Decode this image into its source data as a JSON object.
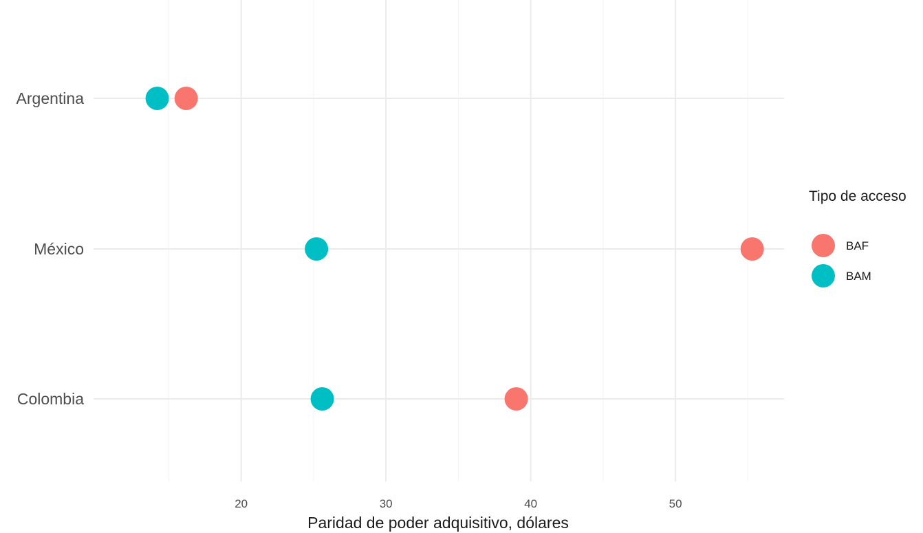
{
  "chart_data": {
    "type": "scatter",
    "title": "",
    "xlabel": "Paridad de poder adquisitivo, dólares",
    "ylabel": "",
    "xlim": [
      9.8,
      57.5
    ],
    "x_ticks": [
      20,
      30,
      40,
      50
    ],
    "x_tick_labels": [
      "20",
      "30",
      "40",
      "50"
    ],
    "categories": [
      "Argentina",
      "México",
      "Colombia"
    ],
    "grid": true,
    "legend": {
      "title": "Tipo de acceso",
      "placement": "right",
      "entries": [
        "BAF",
        "BAM"
      ]
    },
    "series": [
      {
        "name": "BAF",
        "color": "#F8766D",
        "points": [
          {
            "category": "Argentina",
            "x": 16.2
          },
          {
            "category": "México",
            "x": 55.3
          },
          {
            "category": "Colombia",
            "x": 39.0
          }
        ]
      },
      {
        "name": "BAM",
        "color": "#00BFC4",
        "points": [
          {
            "category": "Argentina",
            "x": 14.2
          },
          {
            "category": "México",
            "x": 25.2
          },
          {
            "category": "Colombia",
            "x": 25.6
          }
        ]
      }
    ]
  }
}
